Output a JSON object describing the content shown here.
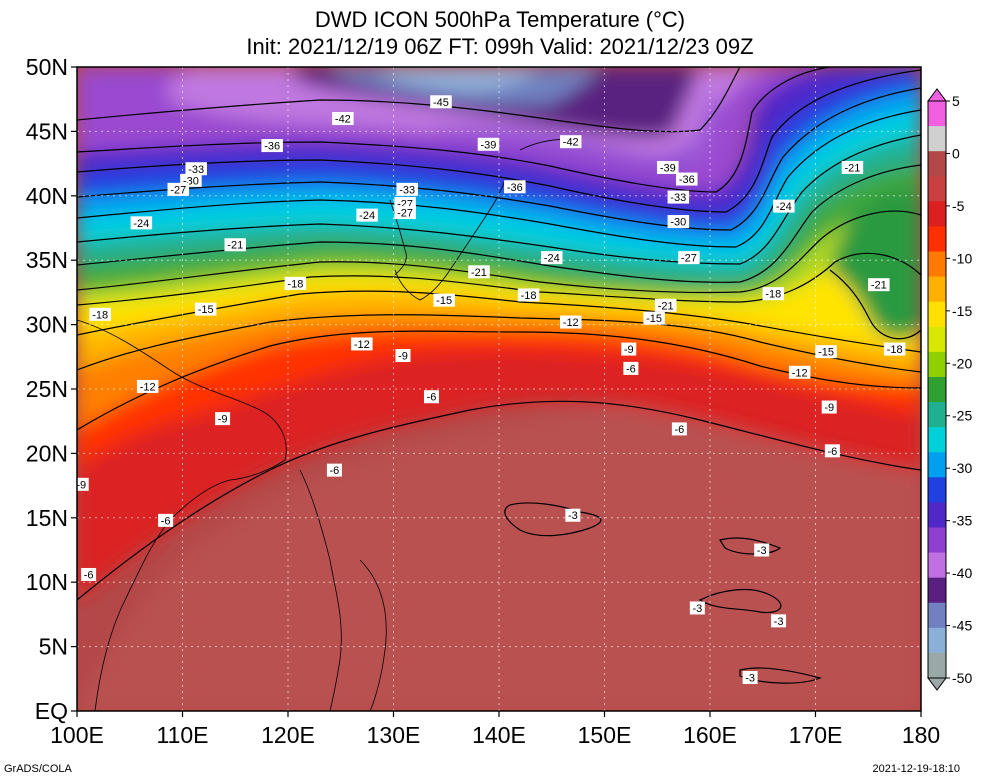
{
  "title_line1": "DWD ICON 500hPa Temperature (°C)",
  "title_line2": "Init: 2021/12/19 06Z  FT: 099h  Valid: 2021/12/23 09Z",
  "footer_left": "GrADS/COLA",
  "footer_right": "2021-12-19-18:10",
  "map": {
    "lon_range": [
      100,
      180
    ],
    "lat_range": [
      0,
      50
    ],
    "lon_ticks": [
      "100E",
      "110E",
      "120E",
      "130E",
      "140E",
      "150E",
      "160E",
      "170E",
      "180"
    ],
    "lat_ticks": [
      "EQ",
      "5N",
      "10N",
      "15N",
      "20N",
      "25N",
      "30N",
      "35N",
      "40N",
      "45N",
      "50N"
    ]
  },
  "colorbar": {
    "labels": [
      "5",
      "0",
      "-5",
      "-10",
      "-15",
      "-20",
      "-25",
      "-30",
      "-35",
      "-40",
      "-45",
      "-50"
    ],
    "levels": [
      5,
      2.5,
      0,
      -2.5,
      -5,
      -7.5,
      -10,
      -12.5,
      -15,
      -17.5,
      -20,
      -22.5,
      -25,
      -27.5,
      -30,
      -32.5,
      -35,
      -37.5,
      -40,
      -42.5,
      -45,
      -47.5,
      -50
    ],
    "colors": [
      "#f060e0",
      "#d0d0d0",
      "#b44848",
      "#c84040",
      "#dc2020",
      "#ff3000",
      "#ff7a00",
      "#ffb000",
      "#ffe000",
      "#d8e800",
      "#90d000",
      "#30a030",
      "#20b090",
      "#00d0d8",
      "#00a0f0",
      "#2040e0",
      "#5028c8",
      "#9040d0",
      "#c070e0",
      "#5a2080",
      "#7080c0",
      "#8ab0d8",
      "#9aa8a8"
    ]
  },
  "contour_labels": [
    {
      "text": "-45",
      "lon": 134.5,
      "lat": 47.3
    },
    {
      "text": "-42",
      "lon": 125.2,
      "lat": 46.0
    },
    {
      "text": "-42",
      "lon": 146.8,
      "lat": 44.2
    },
    {
      "text": "-39",
      "lon": 139.0,
      "lat": 44.0
    },
    {
      "text": "-39",
      "lon": 156.0,
      "lat": 42.2
    },
    {
      "text": "-36",
      "lon": 118.5,
      "lat": 43.9
    },
    {
      "text": "-36",
      "lon": 141.5,
      "lat": 40.7
    },
    {
      "text": "-36",
      "lon": 157.8,
      "lat": 41.3
    },
    {
      "text": "-33",
      "lon": 111.3,
      "lat": 42.1
    },
    {
      "text": "-33",
      "lon": 131.3,
      "lat": 40.5
    },
    {
      "text": "-33",
      "lon": 157.0,
      "lat": 39.9
    },
    {
      "text": "-30",
      "lon": 110.8,
      "lat": 41.2
    },
    {
      "text": "-30",
      "lon": 157.0,
      "lat": 38.0
    },
    {
      "text": "-27",
      "lon": 109.6,
      "lat": 40.5
    },
    {
      "text": "-27",
      "lon": 131.1,
      "lat": 39.4
    },
    {
      "text": "-27",
      "lon": 131.1,
      "lat": 38.7
    },
    {
      "text": "-27",
      "lon": 158.0,
      "lat": 35.2
    },
    {
      "text": "-24",
      "lon": 106.1,
      "lat": 37.9
    },
    {
      "text": "-24",
      "lon": 127.5,
      "lat": 38.5
    },
    {
      "text": "-24",
      "lon": 145.0,
      "lat": 35.2
    },
    {
      "text": "-24",
      "lon": 167.0,
      "lat": 39.2
    },
    {
      "text": "-21",
      "lon": 115.0,
      "lat": 36.2
    },
    {
      "text": "-21",
      "lon": 138.1,
      "lat": 34.1
    },
    {
      "text": "-21",
      "lon": 155.8,
      "lat": 31.5
    },
    {
      "text": "-21",
      "lon": 173.5,
      "lat": 42.2
    },
    {
      "text": "-21",
      "lon": 176.0,
      "lat": 33.1
    },
    {
      "text": "-18",
      "lon": 120.7,
      "lat": 33.2
    },
    {
      "text": "-18",
      "lon": 142.8,
      "lat": 32.3
    },
    {
      "text": "-18",
      "lon": 166.0,
      "lat": 32.4
    },
    {
      "text": "-18",
      "lon": 102.2,
      "lat": 30.8
    },
    {
      "text": "-18",
      "lon": 177.5,
      "lat": 28.1
    },
    {
      "text": "-15",
      "lon": 112.2,
      "lat": 31.2
    },
    {
      "text": "-15",
      "lon": 134.8,
      "lat": 31.9
    },
    {
      "text": "-15",
      "lon": 154.7,
      "lat": 30.5
    },
    {
      "text": "-15",
      "lon": 171.0,
      "lat": 27.9
    },
    {
      "text": "-12",
      "lon": 127.0,
      "lat": 28.5
    },
    {
      "text": "-12",
      "lon": 146.8,
      "lat": 30.2
    },
    {
      "text": "-12",
      "lon": 106.7,
      "lat": 25.2
    },
    {
      "text": "-12",
      "lon": 168.5,
      "lat": 26.3
    },
    {
      "text": "-9",
      "lon": 130.9,
      "lat": 27.6
    },
    {
      "text": "-9",
      "lon": 152.3,
      "lat": 28.1
    },
    {
      "text": "-9",
      "lon": 113.8,
      "lat": 22.7
    },
    {
      "text": "-9",
      "lon": 171.3,
      "lat": 23.6
    },
    {
      "text": "-9",
      "lon": 100.4,
      "lat": 17.6
    },
    {
      "text": "-6",
      "lon": 152.5,
      "lat": 26.6
    },
    {
      "text": "-6",
      "lon": 133.6,
      "lat": 24.4
    },
    {
      "text": "-6",
      "lon": 157.1,
      "lat": 21.9
    },
    {
      "text": "-6",
      "lon": 124.4,
      "lat": 18.7
    },
    {
      "text": "-6",
      "lon": 171.6,
      "lat": 20.2
    },
    {
      "text": "-6",
      "lon": 108.4,
      "lat": 14.8
    },
    {
      "text": "-6",
      "lon": 101.1,
      "lat": 10.6
    },
    {
      "text": "-3",
      "lon": 147.0,
      "lat": 15.2
    },
    {
      "text": "-3",
      "lon": 164.9,
      "lat": 12.5
    },
    {
      "text": "-3",
      "lon": 158.8,
      "lat": 8.0
    },
    {
      "text": "-3",
      "lon": 166.5,
      "lat": 7.0
    },
    {
      "text": "-3",
      "lon": 163.8,
      "lat": 2.6
    }
  ]
}
